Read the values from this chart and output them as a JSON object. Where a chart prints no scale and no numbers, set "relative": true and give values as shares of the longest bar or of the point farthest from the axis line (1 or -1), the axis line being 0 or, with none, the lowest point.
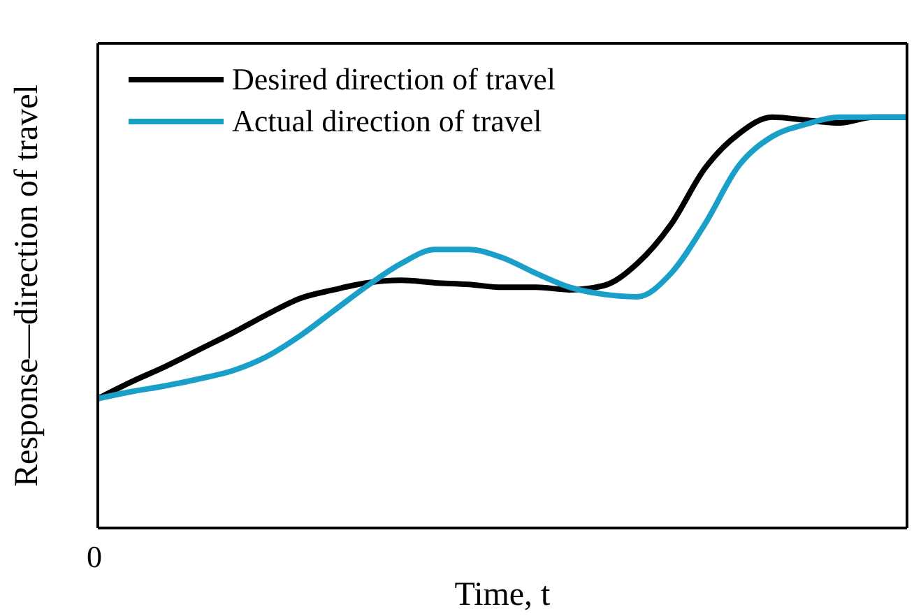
{
  "chart_data": {
    "type": "line",
    "relative": true,
    "xlabel": "Time, t",
    "ylabel": "Response—direction of travel",
    "annotations": [
      "0"
    ],
    "categories": [
      null,
      null,
      null,
      null,
      null,
      null,
      null,
      null,
      null,
      null,
      null,
      null,
      null,
      null,
      null,
      null,
      null,
      null,
      null,
      null,
      null,
      null,
      null,
      null,
      null
    ],
    "series": [
      {
        "name": "Desired direction of travel",
        "color": "#000000",
        "values": [
          0.315,
          0.356,
          0.393,
          0.434,
          0.475,
          0.519,
          0.559,
          0.58,
          0.597,
          0.603,
          0.597,
          0.593,
          0.586,
          0.586,
          0.58,
          0.59,
          0.644,
          0.739,
          0.875,
          0.959,
          1,
          0.993,
          0.986,
          1,
          1
        ]
      },
      {
        "name": "Actual direction of travel",
        "color": "#1a9fc9",
        "values": [
          0.315,
          0.332,
          0.346,
          0.363,
          0.383,
          0.417,
          0.468,
          0.529,
          0.59,
          0.644,
          0.678,
          0.678,
          0.658,
          0.62,
          0.586,
          0.569,
          0.563,
          0.62,
          0.739,
          0.881,
          0.953,
          0.983,
          1,
          1,
          1
        ]
      }
    ],
    "legend": "top left",
    "marker": "none",
    "line_style": "solid"
  }
}
